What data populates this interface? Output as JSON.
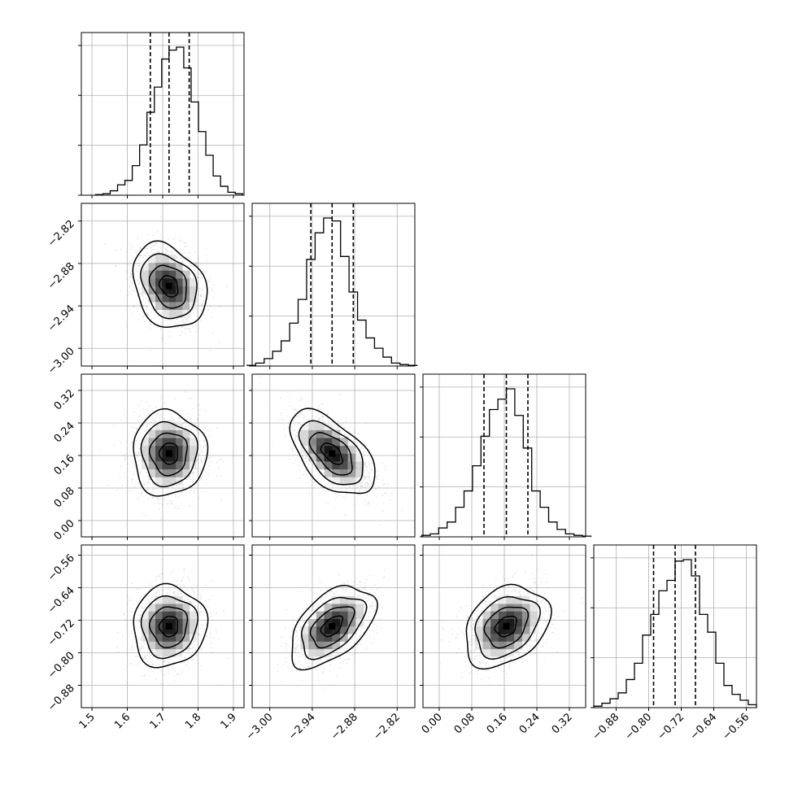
{
  "chart_data": {
    "type": "corner",
    "parameters": [
      {
        "range": [
          1.47,
          1.93
        ],
        "ticks": [
          "1.5",
          "1.6",
          "1.7",
          "1.8",
          "1.9"
        ],
        "tick_values": [
          1.5,
          1.6,
          1.7,
          1.8,
          1.9
        ],
        "quantiles": [
          1.665,
          1.718,
          1.775
        ],
        "mean": 1.718,
        "sd": 0.052,
        "hist": [
          0.004,
          0.01,
          0.03,
          0.07,
          0.1,
          0.2,
          0.34,
          0.56,
          0.73,
          0.92,
          0.98,
          1.0,
          0.86,
          0.63,
          0.43,
          0.27,
          0.13,
          0.06,
          0.02,
          0.01
        ]
      },
      {
        "range": [
          -3.025,
          -2.795
        ],
        "ticks": [
          "−3.00",
          "−2.94",
          "−2.88",
          "−2.82"
        ],
        "tick_values": [
          -3.0,
          -2.94,
          -2.88,
          -2.82
        ],
        "quantiles": [
          -2.942,
          -2.912,
          -2.882
        ],
        "mean": -2.912,
        "sd": 0.03,
        "hist": [
          0.005,
          0.02,
          0.05,
          0.1,
          0.17,
          0.29,
          0.45,
          0.72,
          0.9,
          1.0,
          0.98,
          0.74,
          0.5,
          0.31,
          0.19,
          0.12,
          0.06,
          0.02,
          0.01,
          0.005
        ]
      },
      {
        "range": [
          -0.04,
          0.36
        ],
        "ticks": [
          "0.00",
          "0.08",
          "0.16",
          "0.24",
          "0.32"
        ],
        "tick_values": [
          0.0,
          0.08,
          0.16,
          0.24,
          0.32
        ],
        "quantiles": [
          0.11,
          0.165,
          0.218
        ],
        "mean": 0.165,
        "sd": 0.052,
        "hist": [
          0.01,
          0.02,
          0.06,
          0.1,
          0.2,
          0.31,
          0.48,
          0.68,
          0.86,
          0.93,
          1.0,
          0.82,
          0.6,
          0.31,
          0.2,
          0.1,
          0.05,
          0.02,
          0.01,
          0.005
        ]
      },
      {
        "range": [
          -0.935,
          -0.535
        ],
        "ticks": [
          "−0.88",
          "−0.80",
          "−0.72",
          "−0.64",
          "−0.56"
        ],
        "tick_values": [
          -0.88,
          -0.8,
          -0.72,
          -0.64,
          -0.56
        ],
        "quantiles": [
          -0.788,
          -0.735,
          -0.685
        ],
        "mean": -0.735,
        "sd": 0.05,
        "hist": [
          0.01,
          0.03,
          0.06,
          0.1,
          0.19,
          0.3,
          0.49,
          0.63,
          0.79,
          0.86,
          0.99,
          1.0,
          0.89,
          0.63,
          0.51,
          0.3,
          0.15,
          0.09,
          0.05,
          0.02
        ]
      }
    ],
    "correlations": [
      {
        "pair": [
          1,
          0
        ],
        "rho": -0.25
      },
      {
        "pair": [
          2,
          0
        ],
        "rho": 0.0
      },
      {
        "pair": [
          2,
          1
        ],
        "rho": -0.55
      },
      {
        "pair": [
          3,
          0
        ],
        "rho": 0.05
      },
      {
        "pair": [
          3,
          1
        ],
        "rho": 0.5
      },
      {
        "pair": [
          3,
          2
        ],
        "rho": 0.3
      }
    ],
    "contour_levels_sigma": [
      0.5,
      1.0,
      1.5,
      2.0
    ],
    "grid": true,
    "title": "",
    "legend": "none",
    "colors": {
      "hist": "#000000",
      "contour": "#000000",
      "points": "#888888",
      "grid": "#b0b0b0"
    }
  }
}
